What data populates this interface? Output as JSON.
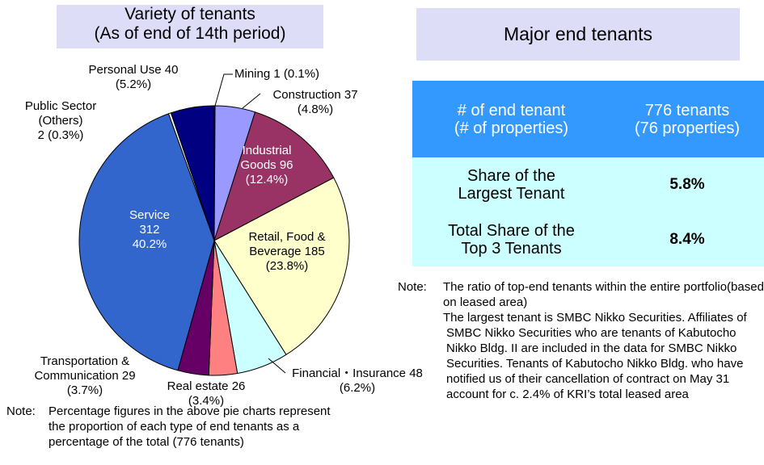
{
  "chart_data": {
    "type": "pie",
    "title": "Variety of tenants\n(As of end of 14th period)",
    "categories": [
      "Mining",
      "Construction",
      "Industrial\nGoods",
      "Retail, Food &\nBeverage",
      "Financial・Insurance",
      "Real estate",
      "Transportation &\nCommunication",
      "Service",
      "Public Sector\n(Others)",
      "Personal Use"
    ],
    "counts": [
      1,
      37,
      96,
      185,
      48,
      26,
      29,
      312,
      2,
      40
    ],
    "values": [
      0.1,
      4.8,
      12.4,
      23.8,
      6.2,
      3.4,
      3.7,
      40.2,
      0.3,
      5.2
    ],
    "value_labels": [
      "(0.1%)",
      "(4.8%)",
      "(12.4%)",
      "(23.8%)",
      "(6.2%)",
      "(3.4%)",
      "(3.7%)",
      "40.2%",
      "(0.3%)",
      "(5.2%)"
    ],
    "colors": [
      "#ffffff",
      "#9999ff",
      "#993366",
      "#ffffcc",
      "#ccffff",
      "#ff8080",
      "#660066",
      "#3366cc",
      "#ffffff",
      "#000080"
    ]
  },
  "pie_note": {
    "label": "Note:",
    "text": "Percentage figures in the above pie charts represent the proportion of each type of end tenants as a percentage of the total (776 tenants)"
  },
  "tenants_table": {
    "title": "Major end tenants",
    "header": [
      "# of end tenant\n(# of properties)",
      "776 tenants\n(76 properties)"
    ],
    "rows": [
      [
        "Share of the\nLargest Tenant",
        "5.8%"
      ],
      [
        "Total Share of the\nTop 3 Tenants",
        "8.4%"
      ]
    ]
  },
  "table_note": {
    "label": "Note:",
    "paragraphs": [
      "The ratio of top-end tenants within the entire portfolio(based on leased area)",
      "The largest tenant is SMBC Nikko Securities. Affiliates of SMBC Nikko Securities who are tenants of Kabutocho Nikko Bldg. II are included in the data for SMBC Nikko Securities. Tenants of Kabutocho Nikko Bldg. who have notified us of their cancellation of contract on May 31 account for c. 2.4% of KRI’s total leased area"
    ]
  }
}
